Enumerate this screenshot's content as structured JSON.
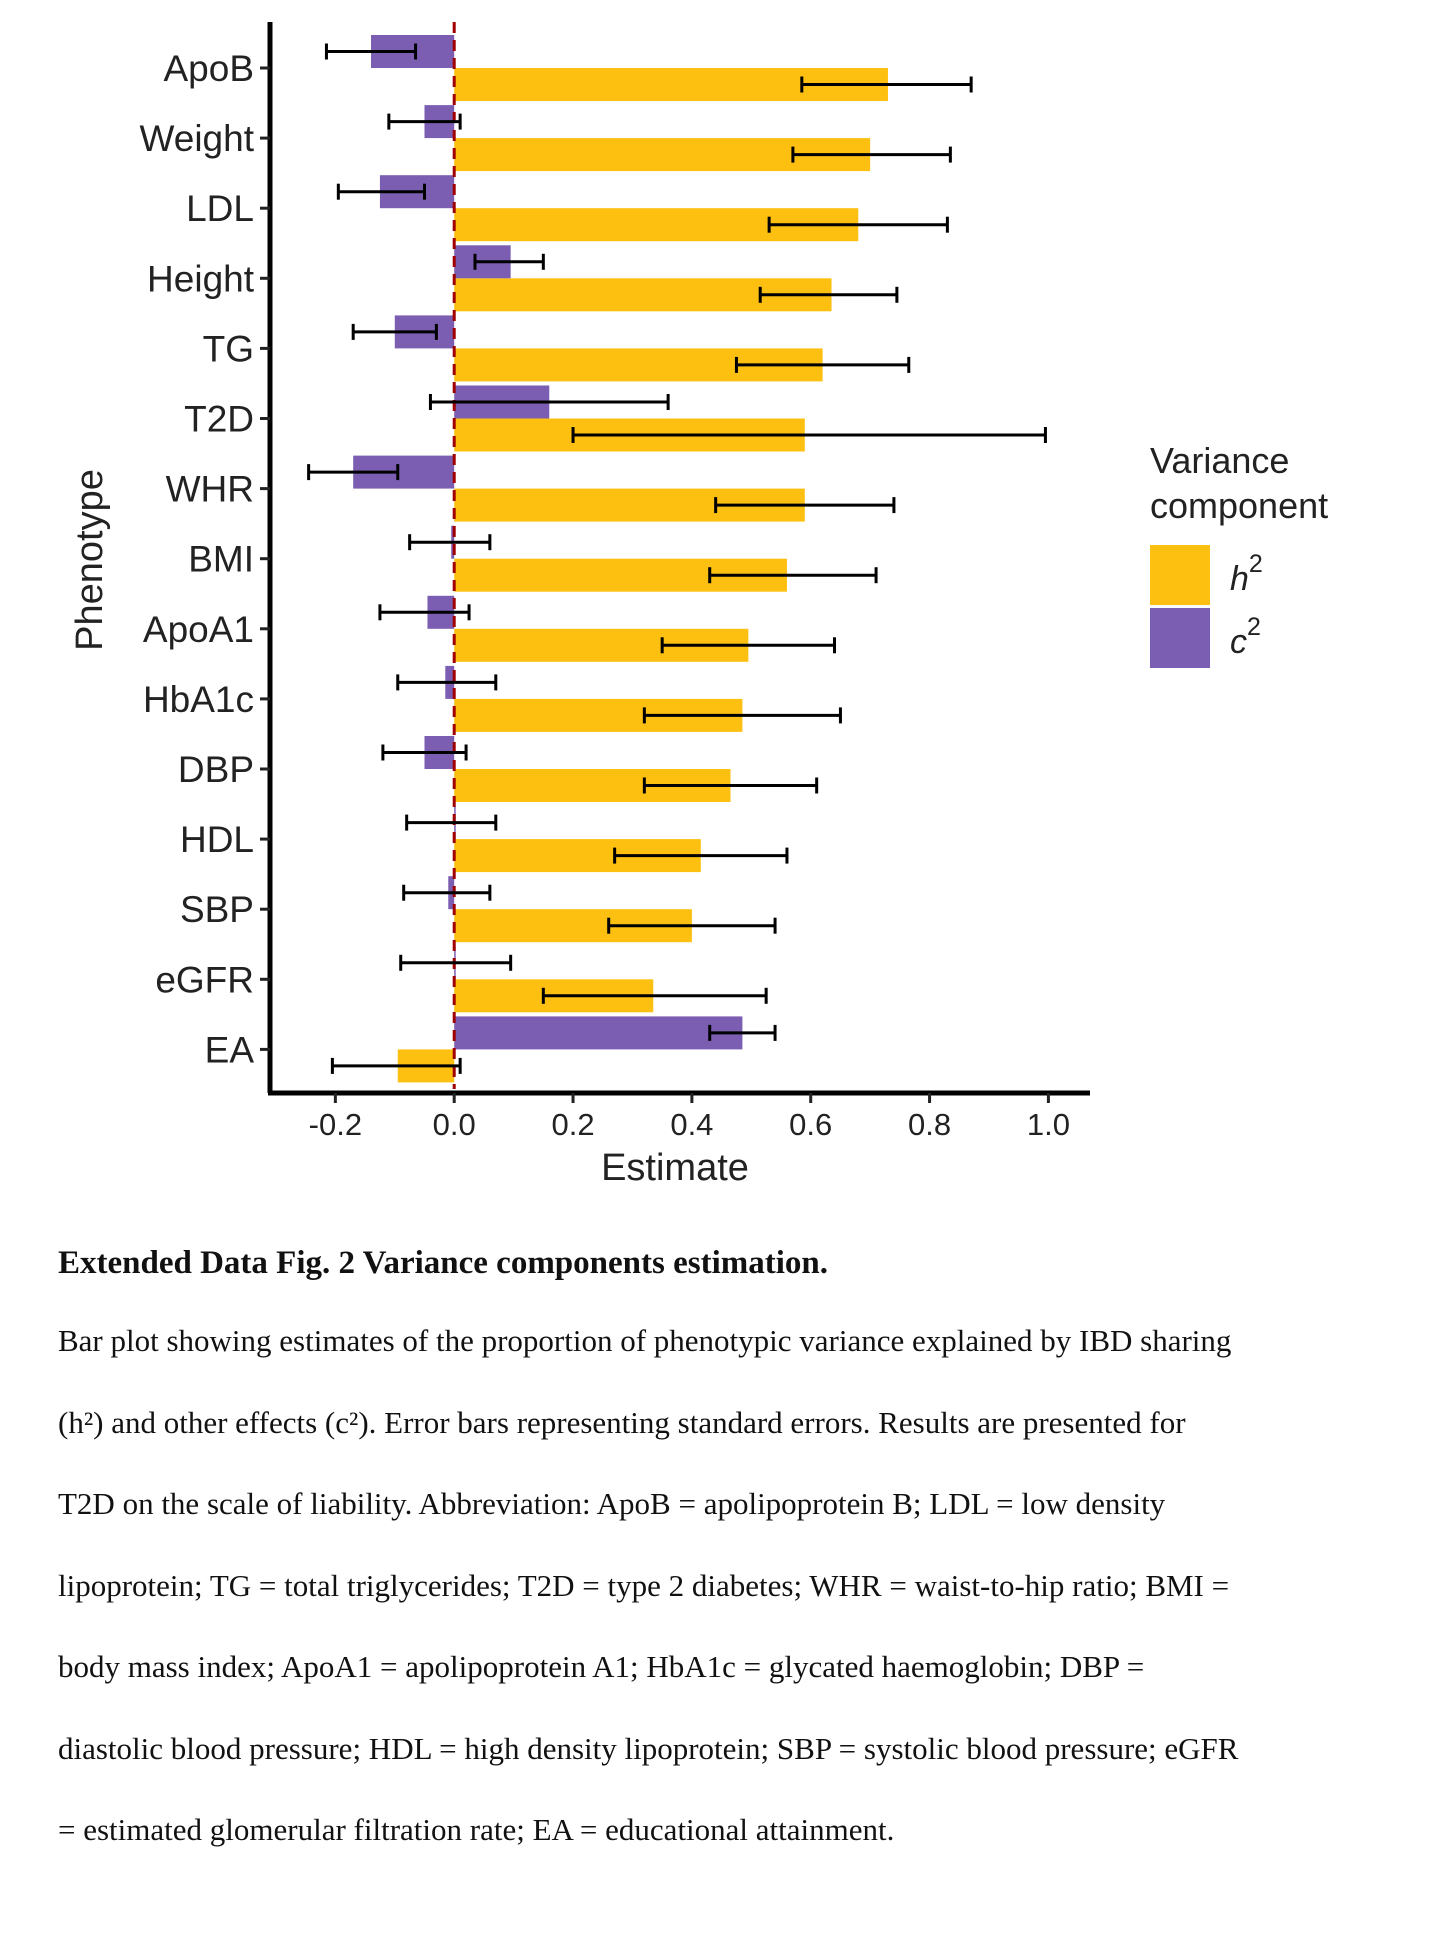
{
  "chart_data": {
    "type": "bar",
    "orientation": "horizontal",
    "categories": [
      "ApoB",
      "Weight",
      "LDL",
      "Height",
      "TG",
      "T2D",
      "WHR",
      "BMI",
      "ApoA1",
      "HbA1c",
      "DBP",
      "HDL",
      "SBP",
      "eGFR",
      "EA"
    ],
    "series": [
      {
        "name": "h2",
        "color": "#FDC010",
        "values": [
          0.73,
          0.7,
          0.68,
          0.635,
          0.62,
          0.59,
          0.59,
          0.56,
          0.495,
          0.485,
          0.465,
          0.415,
          0.4,
          0.335,
          -0.095
        ],
        "err_low": [
          0.585,
          0.57,
          0.53,
          0.515,
          0.475,
          0.2,
          0.44,
          0.43,
          0.35,
          0.32,
          0.32,
          0.27,
          0.26,
          0.15,
          -0.205
        ],
        "err_high": [
          0.87,
          0.835,
          0.83,
          0.745,
          0.765,
          0.995,
          0.74,
          0.71,
          0.64,
          0.65,
          0.61,
          0.56,
          0.54,
          0.525,
          0.01
        ]
      },
      {
        "name": "c2",
        "color": "#7B5EB1",
        "values": [
          -0.14,
          -0.05,
          -0.125,
          0.095,
          -0.1,
          0.16,
          -0.17,
          -0.005,
          -0.045,
          -0.015,
          -0.05,
          0.0,
          -0.01,
          0.0,
          0.485
        ],
        "err_low": [
          -0.215,
          -0.11,
          -0.195,
          0.035,
          -0.17,
          -0.04,
          -0.245,
          -0.075,
          -0.125,
          -0.095,
          -0.12,
          -0.08,
          -0.085,
          -0.09,
          0.43
        ],
        "err_high": [
          -0.065,
          0.01,
          -0.05,
          0.15,
          -0.03,
          0.36,
          -0.095,
          0.06,
          0.025,
          0.07,
          0.02,
          0.07,
          0.06,
          0.095,
          0.54
        ]
      }
    ],
    "xlabel": "Estimate",
    "ylabel": "Phenotype",
    "xticks": [
      "-0.2",
      "0.0",
      "0.2",
      "0.4",
      "0.6",
      "0.8",
      "1.0"
    ],
    "xtick_values": [
      -0.2,
      0.0,
      0.2,
      0.4,
      0.6,
      0.8,
      1.0
    ],
    "xlim": [
      -0.31,
      1.07
    ],
    "reference_line": 0.0,
    "reference_line_color": "#A00000",
    "legend": {
      "title_lines": [
        "Variance",
        "component"
      ],
      "entries": [
        {
          "base": "h",
          "sup": "2",
          "series": "h2"
        },
        {
          "base": "c",
          "sup": "2",
          "series": "c2"
        }
      ],
      "position": "right"
    },
    "grid": false
  },
  "caption": {
    "title": "Extended Data Fig. 2 Variance components estimation.",
    "lines": [
      "Bar plot showing estimates of the proportion of phenotypic variance explained by IBD sharing",
      "(h²) and other effects (c²). Error bars representing standard errors. Results are presented for",
      "T2D on the scale of liability. Abbreviation: ApoB = apolipoprotein B; LDL = low density",
      "lipoprotein; TG = total triglycerides; T2D = type 2 diabetes; WHR = waist-to-hip ratio; BMI =",
      "body mass index; ApoA1 = apolipoprotein A1; HbA1c = glycated haemoglobin; DBP =",
      "diastolic blood pressure; HDL = high density lipoprotein; SBP = systolic blood pressure; eGFR",
      "= estimated glomerular filtration rate; EA = educational attainment."
    ]
  }
}
